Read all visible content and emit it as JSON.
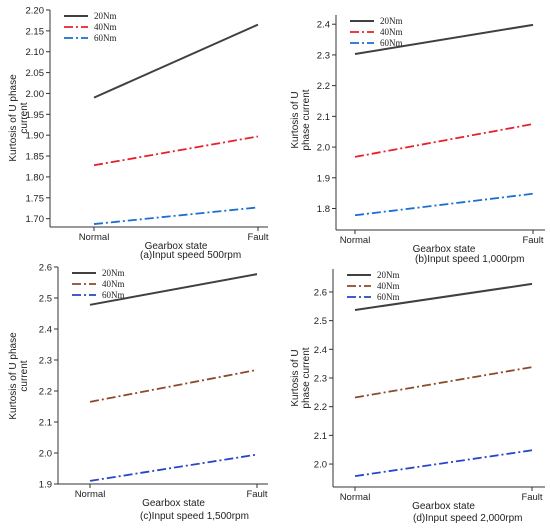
{
  "chart_data": [
    {
      "type": "line",
      "caption": "(a)Input speed 500rpm",
      "xlabel": "Gearbox state",
      "ylabel": "Kurtosis of U phase current",
      "categories": [
        "Normal",
        "Fault"
      ],
      "ylim": [
        1.68,
        2.2
      ],
      "yticks": [
        "1.70",
        "1.75",
        "1.80",
        "1.85",
        "1.90",
        "1.95",
        "2.00",
        "2.05",
        "2.10",
        "2.15",
        "2.20"
      ],
      "legend_position": "top-left",
      "series": [
        {
          "name": "20Nm",
          "values": [
            1.99,
            2.165
          ],
          "color": "#404040",
          "style": "solid"
        },
        {
          "name": "40Nm",
          "values": [
            1.828,
            1.897
          ],
          "color": "#e8202a",
          "style": "dashdot"
        },
        {
          "name": "60Nm",
          "values": [
            1.687,
            1.727
          ],
          "color": "#1a6fd1",
          "style": "dashdot"
        }
      ]
    },
    {
      "type": "line",
      "caption": "(b)Input speed 1,000rpm",
      "xlabel": "Gearbox state",
      "ylabel": "Kurtosis of U phase current",
      "categories": [
        "Normal",
        "Fault"
      ],
      "ylim": [
        1.73,
        2.43
      ],
      "yticks": [
        "1.8",
        "1.9",
        "2.0",
        "2.1",
        "2.2",
        "2.3",
        "2.4"
      ],
      "legend_position": "top-left",
      "series": [
        {
          "name": "20Nm",
          "values": [
            2.303,
            2.398
          ],
          "color": "#404040",
          "style": "solid"
        },
        {
          "name": "40Nm",
          "values": [
            1.968,
            2.075
          ],
          "color": "#e8202a",
          "style": "dashdot"
        },
        {
          "name": "60Nm",
          "values": [
            1.778,
            1.848
          ],
          "color": "#1a6fd1",
          "style": "dashdot"
        }
      ]
    },
    {
      "type": "line",
      "caption": "(c)Input speed 1,500rpm",
      "xlabel": "Gearbox state",
      "ylabel": "Kurtosis of U phase current",
      "categories": [
        "Normal",
        "Fault"
      ],
      "ylim": [
        1.9,
        2.6
      ],
      "yticks": [
        "1.9",
        "2.0",
        "2.1",
        "2.2",
        "2.3",
        "2.4",
        "2.5",
        "2.6"
      ],
      "legend_position": "top-left",
      "series": [
        {
          "name": "20Nm",
          "values": [
            2.478,
            2.577
          ],
          "color": "#404040",
          "style": "solid"
        },
        {
          "name": "40Nm",
          "values": [
            2.165,
            2.268
          ],
          "color": "#8b4a2b",
          "style": "dashdot"
        },
        {
          "name": "60Nm",
          "values": [
            1.91,
            1.995
          ],
          "color": "#2846c8",
          "style": "dashdot"
        }
      ]
    },
    {
      "type": "line",
      "caption": "(d)Input speed 2,000rpm",
      "xlabel": "Gearbox state",
      "ylabel": "Kurtosis of U phase current",
      "categories": [
        "Normal",
        "Fault"
      ],
      "ylim": [
        1.92,
        2.68
      ],
      "yticks": [
        "2.0",
        "2.1",
        "2.2",
        "2.3",
        "2.4",
        "2.5",
        "2.6"
      ],
      "legend_position": "top-left",
      "series": [
        {
          "name": "20Nm",
          "values": [
            2.537,
            2.628
          ],
          "color": "#404040",
          "style": "solid"
        },
        {
          "name": "40Nm",
          "values": [
            2.232,
            2.338
          ],
          "color": "#8b4a2b",
          "style": "dashdot"
        },
        {
          "name": "60Nm",
          "values": [
            1.958,
            2.048
          ],
          "color": "#2846c8",
          "style": "dashdot"
        }
      ]
    }
  ]
}
